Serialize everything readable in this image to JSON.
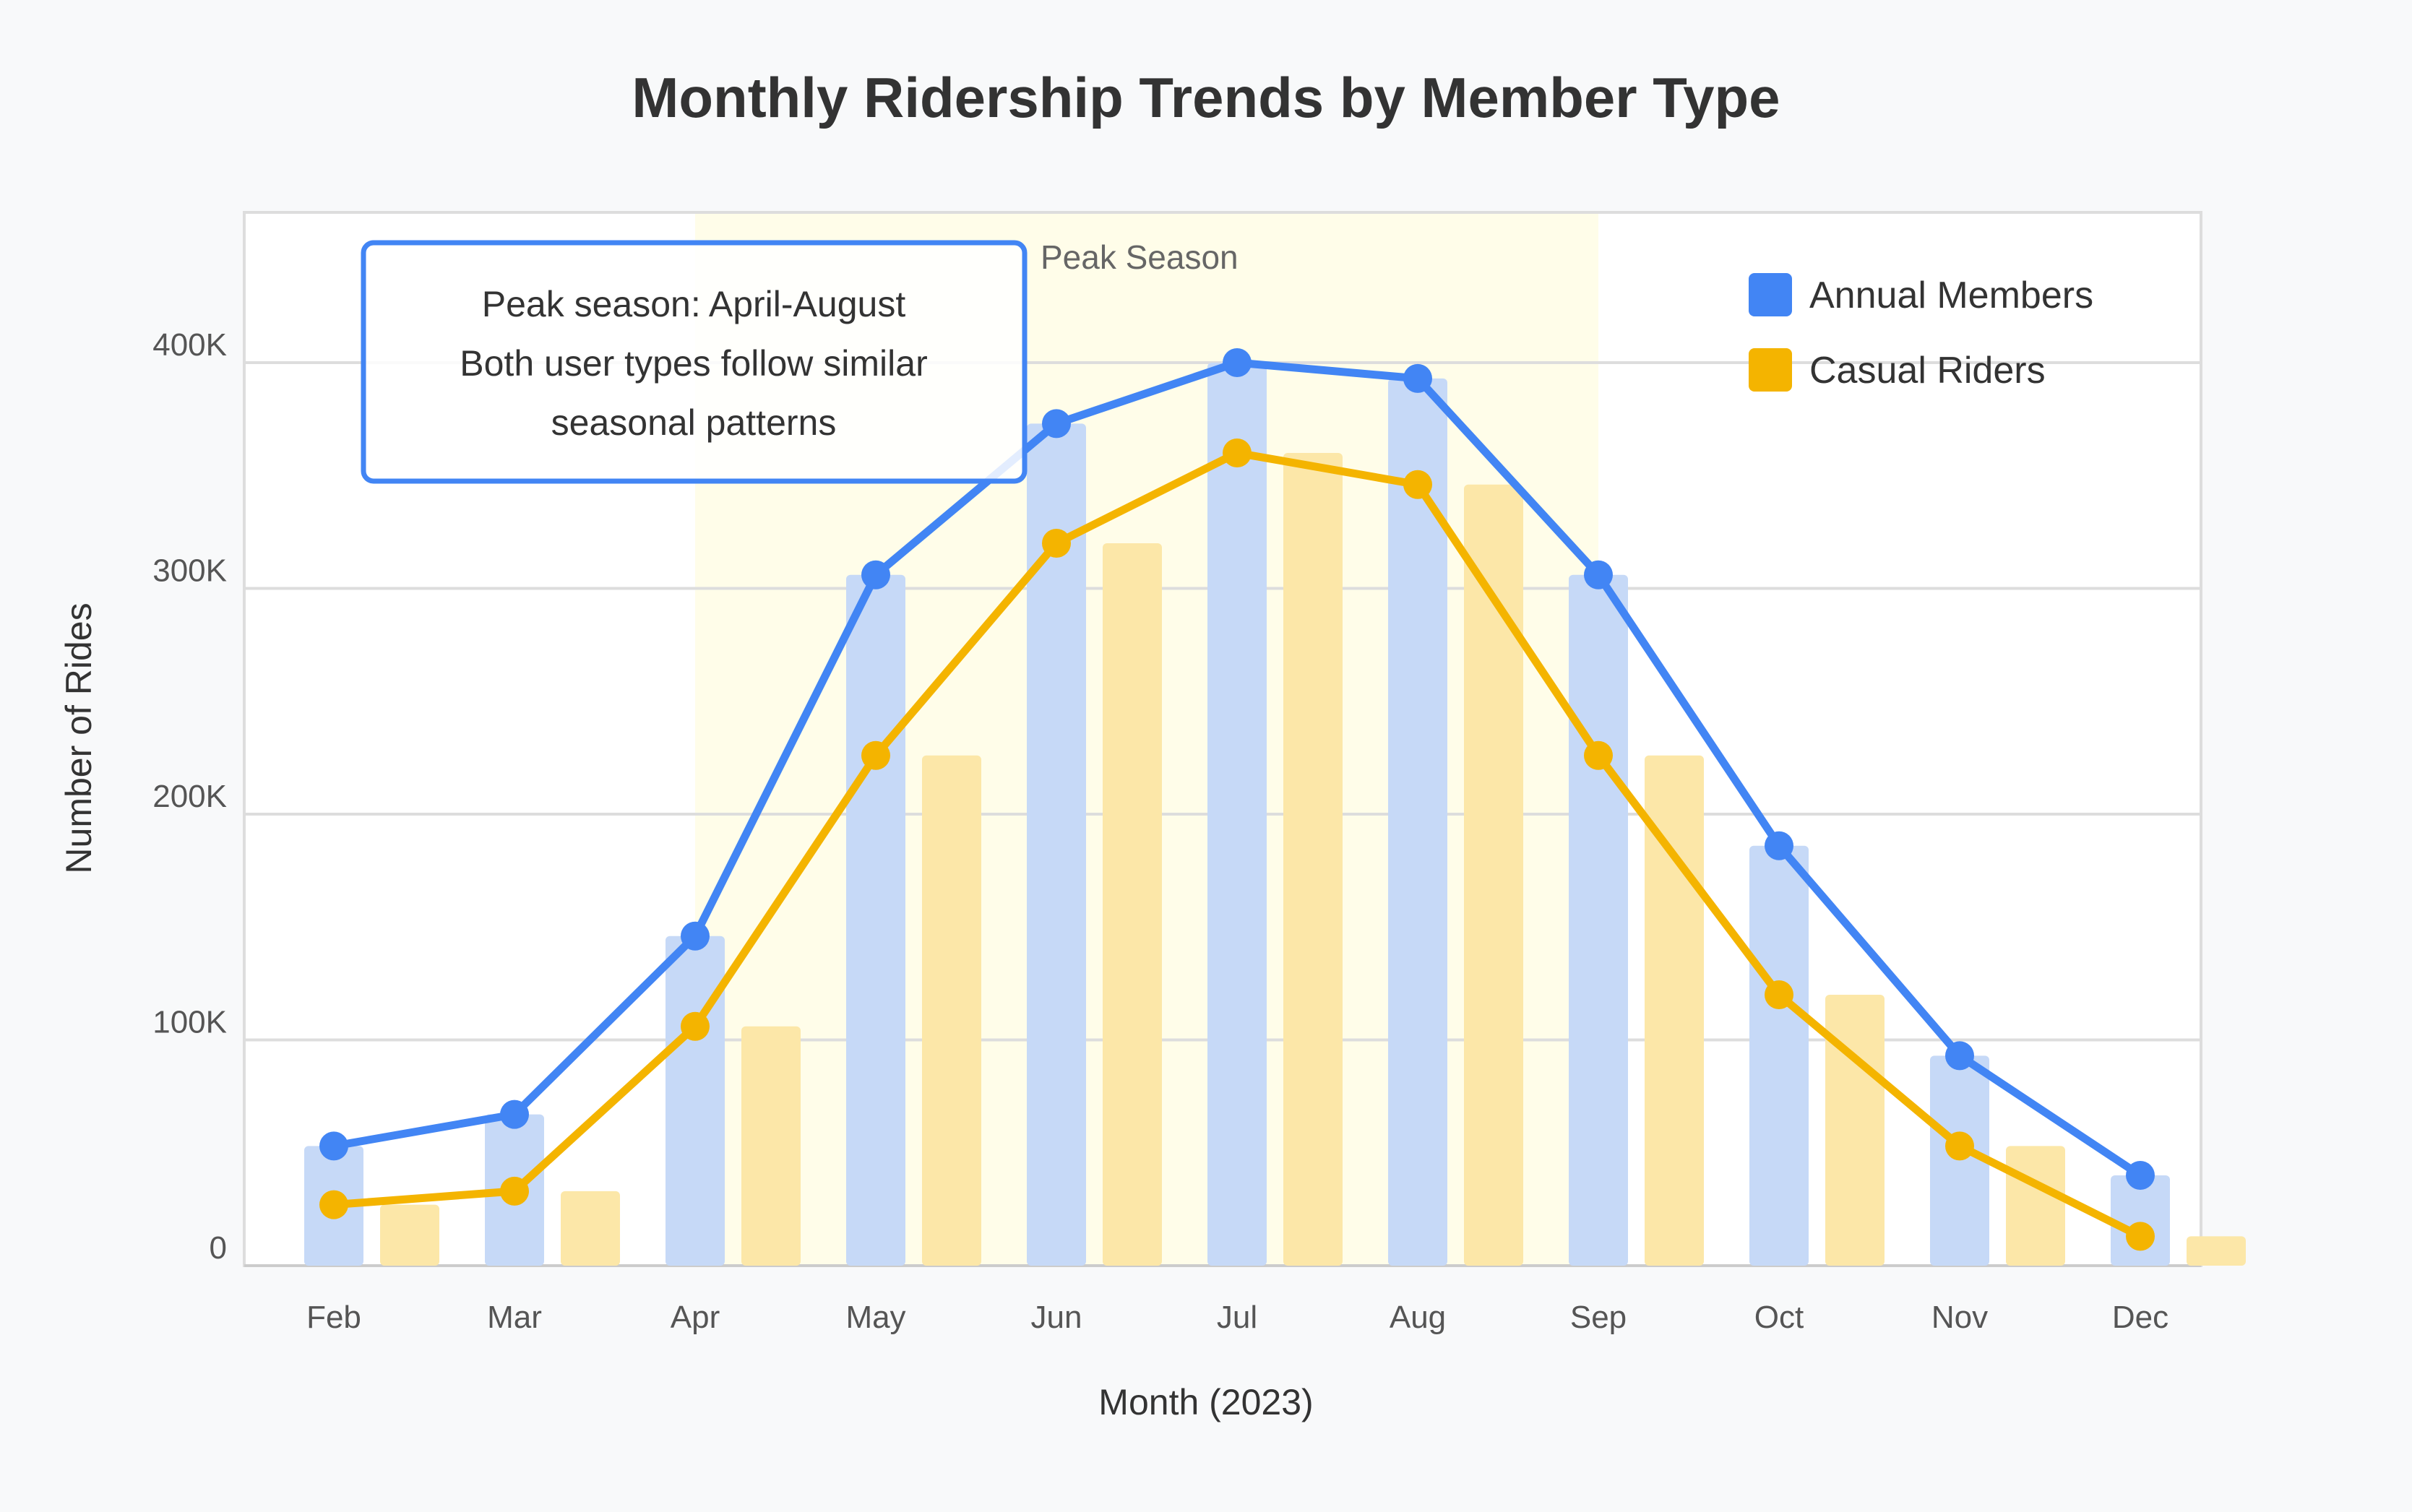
{
  "chart_data": {
    "type": "bar",
    "title": "Monthly Ridership Trends by Member Type",
    "xlabel": "Month (2023)",
    "ylabel": "Number of Rides",
    "categories": [
      "Feb",
      "Mar",
      "Apr",
      "May",
      "Jun",
      "Jul",
      "Aug",
      "Sep",
      "Oct",
      "Nov",
      "Dec"
    ],
    "ylim": [
      0,
      400000
    ],
    "yticks": [
      0,
      100000,
      200000,
      300000,
      400000
    ],
    "ytick_labels": [
      "0",
      "100K",
      "200K",
      "300K",
      "400K"
    ],
    "grid": true,
    "legend_position": "top-right",
    "series": [
      {
        "name": "Annual Members",
        "color": "#4285f4",
        "render": "bar+line",
        "values": [
          53000,
          67000,
          146000,
          306000,
          373000,
          400000,
          393000,
          306000,
          186000,
          93000,
          40000
        ]
      },
      {
        "name": "Casual Riders",
        "color": "#f4b400",
        "render": "bar+line",
        "values": [
          27000,
          33000,
          106000,
          226000,
          320000,
          360000,
          346000,
          226000,
          120000,
          53000,
          13000
        ]
      }
    ],
    "highlight_band": {
      "label": "Peak Season",
      "from": "Apr",
      "to": "Sep",
      "color": "#fffde7"
    },
    "annotation": {
      "lines": [
        "Peak season: April-August",
        "Both user types follow similar",
        "seasonal patterns"
      ],
      "border_color": "#4285f4"
    }
  }
}
